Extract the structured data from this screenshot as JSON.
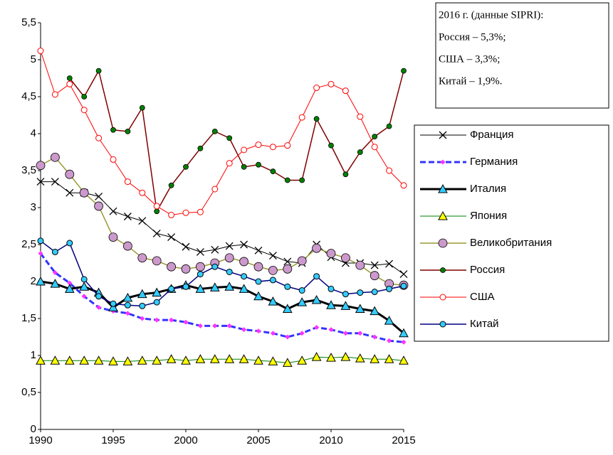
{
  "chart_data": {
    "type": "line",
    "x": [
      1990,
      1991,
      1992,
      1993,
      1994,
      1995,
      1996,
      1997,
      1998,
      1999,
      2000,
      2001,
      2002,
      2003,
      2004,
      2005,
      2006,
      2007,
      2008,
      2009,
      2010,
      2011,
      2012,
      2013,
      2014,
      2015
    ],
    "xlim": [
      1990,
      2015
    ],
    "xticks": [
      1990,
      1995,
      2000,
      2005,
      2010,
      2015
    ],
    "ylim": [
      0,
      5.5
    ],
    "yticks": [
      0,
      {
        "value": 0.5,
        "label": "0,5"
      },
      1,
      {
        "value": 1.5,
        "label": "1,5"
      },
      2,
      {
        "value": 2.5,
        "label": "2,5"
      },
      3,
      {
        "value": 3.5,
        "label": "3,5"
      },
      4,
      {
        "value": 4.5,
        "label": "4,5"
      },
      5,
      {
        "value": 5.5,
        "label": "5,5"
      }
    ],
    "grid": false,
    "annotation": [
      "2016 г. (данные SIPRI):",
      "Россия – 5,3%;",
      "США – 3,3%;",
      "Китай – 1,9%."
    ],
    "series": [
      {
        "name": "Франция",
        "color": "#000000",
        "marker_color": "#000000",
        "marker": "x",
        "line_width": 1,
        "values": [
          3.35,
          3.35,
          3.2,
          3.2,
          3.15,
          2.95,
          2.88,
          2.82,
          2.65,
          2.6,
          2.47,
          2.4,
          2.43,
          2.48,
          2.5,
          2.42,
          2.35,
          2.27,
          2.25,
          2.5,
          2.33,
          2.25,
          2.25,
          2.22,
          2.24,
          2.1
        ]
      },
      {
        "name": "Германия",
        "color": "#3333ff",
        "marker_color": "#ff33ff",
        "marker": "diamond",
        "line_width": 3,
        "dashed": true,
        "values": [
          2.38,
          2.12,
          1.98,
          1.8,
          1.65,
          1.6,
          1.57,
          1.5,
          1.48,
          1.48,
          1.45,
          1.4,
          1.4,
          1.4,
          1.35,
          1.33,
          1.3,
          1.25,
          1.3,
          1.38,
          1.35,
          1.3,
          1.3,
          1.25,
          1.2,
          1.18
        ]
      },
      {
        "name": "Италия",
        "color": "#000000",
        "marker_color": "#33ccff",
        "marker": "triangle",
        "line_width": 3,
        "values": [
          2.0,
          1.97,
          1.9,
          1.93,
          1.85,
          1.65,
          1.78,
          1.83,
          1.85,
          1.9,
          1.95,
          1.9,
          1.92,
          1.93,
          1.9,
          1.8,
          1.73,
          1.63,
          1.72,
          1.75,
          1.68,
          1.67,
          1.63,
          1.6,
          1.47,
          1.3
        ]
      },
      {
        "name": "Япония",
        "color": "#008000",
        "marker_color": "#ffff00",
        "marker": "triangle",
        "line_width": 1,
        "values": [
          0.93,
          0.93,
          0.93,
          0.93,
          0.93,
          0.92,
          0.92,
          0.93,
          0.93,
          0.95,
          0.93,
          0.95,
          0.95,
          0.95,
          0.95,
          0.93,
          0.92,
          0.9,
          0.93,
          0.98,
          0.97,
          0.98,
          0.96,
          0.95,
          0.95,
          0.93
        ]
      },
      {
        "name": "Великобритания",
        "color": "#999933",
        "marker_color": "#cc99cc",
        "marker": "circle",
        "line_width": 1.5,
        "values": [
          3.57,
          3.68,
          3.45,
          3.2,
          3.02,
          2.6,
          2.48,
          2.32,
          2.28,
          2.2,
          2.17,
          2.2,
          2.25,
          2.32,
          2.27,
          2.2,
          2.15,
          2.17,
          2.28,
          2.45,
          2.38,
          2.32,
          2.22,
          2.08,
          1.97,
          1.95
        ]
      },
      {
        "name": "Россия",
        "color": "#800000",
        "marker_color": "#008000",
        "marker": "dot",
        "line_width": 1.5,
        "values": [
          null,
          null,
          4.75,
          4.5,
          4.85,
          4.05,
          4.03,
          4.35,
          2.95,
          3.3,
          3.55,
          3.8,
          4.03,
          3.94,
          3.55,
          3.58,
          3.49,
          3.37,
          3.37,
          4.2,
          3.84,
          3.45,
          3.75,
          3.96,
          4.1,
          4.85
        ]
      },
      {
        "name": "США",
        "color": "#ff0000",
        "marker_color": "#ffffff",
        "marker_edge": "#ff0000",
        "marker": "circle-small",
        "line_width": 1,
        "values": [
          5.12,
          4.53,
          4.67,
          4.32,
          3.94,
          3.65,
          3.35,
          3.2,
          3.02,
          2.9,
          2.93,
          2.94,
          3.25,
          3.6,
          3.78,
          3.85,
          3.82,
          3.84,
          4.22,
          4.62,
          4.67,
          4.58,
          4.23,
          3.82,
          3.5,
          3.3
        ]
      },
      {
        "name": "Китай",
        "color": "#000080",
        "marker_color": "#33ccff",
        "marker": "circle-small",
        "line_width": 1.5,
        "values": [
          2.55,
          2.4,
          2.52,
          2.03,
          1.8,
          1.7,
          1.68,
          1.67,
          1.72,
          1.9,
          1.93,
          2.1,
          2.2,
          2.13,
          2.07,
          2.0,
          2.02,
          1.93,
          1.88,
          2.07,
          1.9,
          1.83,
          1.85,
          1.86,
          1.9,
          1.94
        ]
      }
    ]
  }
}
